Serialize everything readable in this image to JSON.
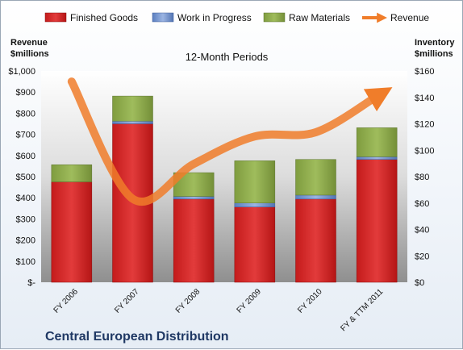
{
  "chart_data": {
    "type": "bar",
    "subtitle": "12-Month Periods",
    "company": "Central European Distribution",
    "categories": [
      "FY 2006",
      "FY 2007",
      "FY 2008",
      "FY 2009",
      "FY 2010",
      "FY & TTM 2011"
    ],
    "stacked": true,
    "series": [
      {
        "name": "Finished Goods",
        "axis": "right",
        "color": "#cc2222",
        "values": [
          76,
          120,
          63,
          57,
          63,
          93
        ]
      },
      {
        "name": "Work in Progress",
        "axis": "right",
        "color": "#6f8fc9",
        "values": [
          0,
          2,
          2,
          3,
          3,
          2
        ]
      },
      {
        "name": "Raw Materials",
        "axis": "right",
        "color": "#8aa84a",
        "values": [
          13,
          19,
          18,
          32,
          27,
          22
        ]
      },
      {
        "name": "Revenue",
        "type": "line",
        "axis": "left",
        "color": "#f07d2a",
        "values": [
          950,
          395,
          560,
          690,
          710,
          880
        ]
      }
    ],
    "y_left": {
      "title_line1": "Revenue",
      "title_line2": "$millions",
      "range": [
        0,
        1000
      ],
      "ticks": [
        "$-",
        "$100",
        "$200",
        "$300",
        "$400",
        "$500",
        "$600",
        "$700",
        "$800",
        "$900",
        "$1,000"
      ]
    },
    "y_right": {
      "title_line1": "Inventory",
      "title_line2": "$millions",
      "range": [
        0,
        160
      ],
      "ticks": [
        "$0",
        "$20",
        "$40",
        "$60",
        "$80",
        "$100",
        "$120",
        "$140",
        "$160"
      ]
    },
    "legend_position": "top",
    "grid": false
  }
}
